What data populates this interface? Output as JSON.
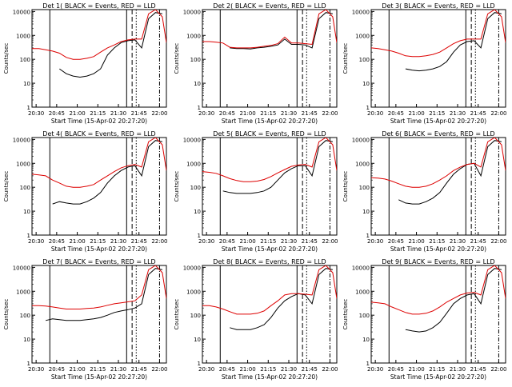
{
  "figure": {
    "x_ticks": [
      "20:30",
      "20:45",
      "21:00",
      "21:15",
      "21:30",
      "21:45",
      "22:00"
    ],
    "y_ticks": [
      "1",
      "10",
      "100",
      "1000",
      "10000"
    ],
    "ylabel": "Counts/sec",
    "xlabel": "Start Time (15-Apr-02 20:27:20)"
  },
  "chart_data": [
    {
      "type": "line",
      "title": "Det 1( BLACK = Events, RED = LLD",
      "xlabel": "Start Time (15-Apr-02 20:27:20)",
      "ylabel": "Counts/sec",
      "xlim_minutes": [
        0,
        98
      ],
      "ylim": [
        1,
        12000
      ],
      "yscale": "log",
      "x_minutes": [
        0,
        5,
        10,
        15,
        20,
        25,
        30,
        35,
        40,
        45,
        50,
        55,
        60,
        65,
        70,
        75,
        80,
        85,
        90,
        95,
        98
      ],
      "series": [
        {
          "name": "Events",
          "color": "#000000",
          "values": [
            null,
            null,
            null,
            null,
            40,
            25,
            20,
            18,
            20,
            25,
            40,
            150,
            300,
            500,
            600,
            650,
            300,
            5000,
            9000,
            8000,
            null
          ]
        },
        {
          "name": "LLD",
          "color": "#dd0000",
          "values": [
            280,
            280,
            250,
            220,
            180,
            120,
            100,
            100,
            110,
            130,
            200,
            300,
            400,
            550,
            650,
            700,
            700,
            8000,
            12000,
            6000,
            500
          ]
        }
      ],
      "vlines_minutes": [
        {
          "x": 13,
          "style": "solid"
        },
        {
          "x": 69,
          "style": "solid"
        },
        {
          "x": 73,
          "style": "dashed"
        },
        {
          "x": 76,
          "style": "dotted"
        },
        {
          "x": 93,
          "style": "dashdot"
        }
      ]
    },
    {
      "type": "line",
      "title": "Det 2( BLACK = Events, RED = LLD",
      "xlabel": "Start Time (15-Apr-02 20:27:20)",
      "ylabel": "Counts/sec",
      "xlim_minutes": [
        0,
        98
      ],
      "ylim": [
        1,
        12000
      ],
      "yscale": "log",
      "x_minutes": [
        0,
        5,
        10,
        15,
        20,
        25,
        30,
        35,
        40,
        45,
        50,
        55,
        60,
        65,
        70,
        75,
        80,
        85,
        90,
        95,
        98
      ],
      "series": [
        {
          "name": "Events",
          "color": "#000000",
          "values": [
            null,
            null,
            null,
            null,
            300,
            280,
            280,
            270,
            300,
            320,
            350,
            400,
            700,
            420,
            420,
            400,
            300,
            5000,
            9000,
            8000,
            null
          ]
        },
        {
          "name": "LLD",
          "color": "#dd0000",
          "values": [
            550,
            550,
            520,
            480,
            320,
            300,
            300,
            300,
            320,
            350,
            380,
            450,
            850,
            480,
            480,
            450,
            420,
            8000,
            12000,
            6000,
            500
          ]
        }
      ],
      "vlines_minutes": [
        {
          "x": 13,
          "style": "solid"
        },
        {
          "x": 69,
          "style": "solid"
        },
        {
          "x": 73,
          "style": "dashed"
        },
        {
          "x": 76,
          "style": "dotted"
        },
        {
          "x": 93,
          "style": "dashdot"
        }
      ]
    },
    {
      "type": "line",
      "title": "Det 3( BLACK = Events, RED = LLD",
      "xlabel": "Start Time (15-Apr-02 20:27:20)",
      "ylabel": "Counts/sec",
      "xlim_minutes": [
        0,
        98
      ],
      "ylim": [
        1,
        12000
      ],
      "yscale": "log",
      "x_minutes": [
        0,
        5,
        10,
        15,
        20,
        25,
        30,
        35,
        40,
        45,
        50,
        55,
        60,
        65,
        70,
        75,
        80,
        85,
        90,
        95,
        98
      ],
      "series": [
        {
          "name": "Events",
          "color": "#000000",
          "values": [
            null,
            null,
            null,
            null,
            null,
            40,
            35,
            33,
            35,
            40,
            50,
            80,
            200,
            400,
            550,
            600,
            300,
            5000,
            9000,
            8000,
            null
          ]
        },
        {
          "name": "LLD",
          "color": "#dd0000",
          "values": [
            300,
            280,
            250,
            220,
            180,
            140,
            130,
            130,
            140,
            160,
            200,
            300,
            450,
            600,
            700,
            700,
            700,
            8000,
            12000,
            6000,
            500
          ]
        }
      ],
      "vlines_minutes": [
        {
          "x": 13,
          "style": "solid"
        },
        {
          "x": 69,
          "style": "solid"
        },
        {
          "x": 73,
          "style": "dashed"
        },
        {
          "x": 76,
          "style": "dotted"
        },
        {
          "x": 93,
          "style": "dashdot"
        }
      ]
    },
    {
      "type": "line",
      "title": "Det 4( BLACK = Events, RED = LLD",
      "xlabel": "Start Time (15-Apr-02 20:27:20)",
      "ylabel": "Counts/sec",
      "xlim_minutes": [
        0,
        98
      ],
      "ylim": [
        1,
        12000
      ],
      "yscale": "log",
      "x_minutes": [
        0,
        5,
        10,
        15,
        20,
        25,
        30,
        35,
        40,
        45,
        50,
        55,
        60,
        65,
        70,
        75,
        80,
        85,
        90,
        95,
        98
      ],
      "series": [
        {
          "name": "Events",
          "color": "#000000",
          "values": [
            null,
            null,
            null,
            20,
            25,
            22,
            20,
            20,
            25,
            35,
            60,
            150,
            300,
            500,
            700,
            800,
            300,
            5000,
            9000,
            8000,
            null
          ]
        },
        {
          "name": "LLD",
          "color": "#dd0000",
          "values": [
            350,
            330,
            300,
            200,
            150,
            110,
            100,
            100,
            110,
            130,
            200,
            300,
            450,
            650,
            800,
            900,
            700,
            8000,
            12000,
            6000,
            500
          ]
        }
      ],
      "vlines_minutes": [
        {
          "x": 13,
          "style": "solid"
        },
        {
          "x": 69,
          "style": "solid"
        },
        {
          "x": 73,
          "style": "dashed"
        },
        {
          "x": 76,
          "style": "dotted"
        },
        {
          "x": 93,
          "style": "dashdot"
        }
      ]
    },
    {
      "type": "line",
      "title": "Det 5( BLACK = Events, RED = LLD",
      "xlabel": "Start Time (15-Apr-02 20:27:20)",
      "ylabel": "Counts/sec",
      "xlim_minutes": [
        0,
        98
      ],
      "ylim": [
        1,
        12000
      ],
      "yscale": "log",
      "x_minutes": [
        0,
        5,
        10,
        15,
        20,
        25,
        30,
        35,
        40,
        45,
        50,
        55,
        60,
        65,
        70,
        75,
        80,
        85,
        90,
        95,
        98
      ],
      "series": [
        {
          "name": "Events",
          "color": "#000000",
          "values": [
            null,
            null,
            null,
            70,
            60,
            55,
            55,
            55,
            60,
            70,
            100,
            200,
            400,
            600,
            800,
            800,
            300,
            5000,
            9000,
            8000,
            null
          ]
        },
        {
          "name": "LLD",
          "color": "#dd0000",
          "values": [
            450,
            420,
            380,
            300,
            230,
            190,
            170,
            170,
            180,
            210,
            280,
            400,
            550,
            750,
            850,
            900,
            700,
            8000,
            12000,
            6000,
            500
          ]
        }
      ],
      "vlines_minutes": [
        {
          "x": 13,
          "style": "solid"
        },
        {
          "x": 69,
          "style": "solid"
        },
        {
          "x": 73,
          "style": "dashed"
        },
        {
          "x": 76,
          "style": "dotted"
        },
        {
          "x": 93,
          "style": "dashdot"
        }
      ]
    },
    {
      "type": "line",
      "title": "Det 6( BLACK = Events, RED = LLD",
      "xlabel": "Start Time (15-Apr-02 20:27:20)",
      "ylabel": "Counts/sec",
      "xlim_minutes": [
        0,
        98
      ],
      "ylim": [
        1,
        12000
      ],
      "yscale": "log",
      "x_minutes": [
        0,
        5,
        10,
        15,
        20,
        25,
        30,
        35,
        40,
        45,
        50,
        55,
        60,
        65,
        70,
        75,
        80,
        85,
        90,
        95,
        98
      ],
      "series": [
        {
          "name": "Events",
          "color": "#000000",
          "values": [
            null,
            null,
            null,
            null,
            30,
            22,
            20,
            20,
            25,
            35,
            60,
            150,
            350,
            600,
            900,
            1000,
            300,
            5000,
            9000,
            8000,
            null
          ]
        },
        {
          "name": "LLD",
          "color": "#dd0000",
          "values": [
            250,
            240,
            220,
            180,
            140,
            110,
            100,
            100,
            110,
            140,
            200,
            300,
            500,
            700,
            900,
            1000,
            700,
            8000,
            12000,
            6000,
            500
          ]
        }
      ],
      "vlines_minutes": [
        {
          "x": 13,
          "style": "solid"
        },
        {
          "x": 69,
          "style": "solid"
        },
        {
          "x": 73,
          "style": "dashed"
        },
        {
          "x": 76,
          "style": "dotted"
        },
        {
          "x": 93,
          "style": "dashdot"
        }
      ]
    },
    {
      "type": "line",
      "title": "Det 7( BLACK = Events, RED = LLD",
      "xlabel": "Start Time (15-Apr-02 20:27:20)",
      "ylabel": "Counts/sec",
      "xlim_minutes": [
        0,
        98
      ],
      "ylim": [
        1,
        12000
      ],
      "yscale": "log",
      "x_minutes": [
        0,
        5,
        10,
        15,
        20,
        25,
        30,
        35,
        40,
        45,
        50,
        55,
        60,
        65,
        70,
        75,
        80,
        85,
        90,
        95,
        98
      ],
      "series": [
        {
          "name": "Events",
          "color": "#000000",
          "values": [
            null,
            null,
            60,
            70,
            65,
            60,
            60,
            60,
            65,
            70,
            80,
            100,
            130,
            150,
            170,
            200,
            300,
            5000,
            9000,
            8000,
            null
          ]
        },
        {
          "name": "LLD",
          "color": "#dd0000",
          "values": [
            250,
            250,
            240,
            220,
            200,
            180,
            180,
            180,
            190,
            200,
            220,
            260,
            300,
            330,
            360,
            400,
            700,
            8000,
            12000,
            6000,
            500
          ]
        }
      ],
      "vlines_minutes": [
        {
          "x": 13,
          "style": "solid"
        },
        {
          "x": 69,
          "style": "solid"
        },
        {
          "x": 73,
          "style": "dashed"
        },
        {
          "x": 76,
          "style": "dotted"
        },
        {
          "x": 93,
          "style": "dashdot"
        }
      ]
    },
    {
      "type": "line",
      "title": "Det 8( BLACK = Events, RED = LLD",
      "xlabel": "Start Time (15-Apr-02 20:27:20)",
      "ylabel": "Counts/sec",
      "xlim_minutes": [
        0,
        98
      ],
      "ylim": [
        1,
        12000
      ],
      "yscale": "log",
      "x_minutes": [
        0,
        5,
        10,
        15,
        20,
        25,
        30,
        35,
        40,
        45,
        50,
        55,
        60,
        65,
        70,
        75,
        80,
        85,
        90,
        95,
        98
      ],
      "series": [
        {
          "name": "Events",
          "color": "#000000",
          "values": [
            null,
            null,
            null,
            null,
            30,
            25,
            25,
            25,
            30,
            40,
            80,
            200,
            400,
            600,
            800,
            700,
            300,
            5000,
            9000,
            8000,
            null
          ]
        },
        {
          "name": "LLD",
          "color": "#dd0000",
          "values": [
            250,
            250,
            220,
            180,
            140,
            110,
            110,
            110,
            120,
            150,
            250,
            400,
            700,
            800,
            800,
            750,
            700,
            8000,
            12000,
            6000,
            500
          ]
        }
      ],
      "vlines_minutes": [
        {
          "x": 13,
          "style": "solid"
        },
        {
          "x": 69,
          "style": "solid"
        },
        {
          "x": 73,
          "style": "dashed"
        },
        {
          "x": 76,
          "style": "dotted"
        },
        {
          "x": 93,
          "style": "dashdot"
        }
      ]
    },
    {
      "type": "line",
      "title": "Det 9( BLACK = Events, RED = LLD",
      "xlabel": "Start Time (15-Apr-02 20:27:20)",
      "ylabel": "Counts/sec",
      "xlim_minutes": [
        0,
        98
      ],
      "ylim": [
        1,
        12000
      ],
      "yscale": "log",
      "x_minutes": [
        0,
        5,
        10,
        15,
        20,
        25,
        30,
        35,
        40,
        45,
        50,
        55,
        60,
        65,
        70,
        75,
        80,
        85,
        90,
        95,
        98
      ],
      "series": [
        {
          "name": "Events",
          "color": "#000000",
          "values": [
            null,
            null,
            null,
            null,
            null,
            25,
            22,
            20,
            22,
            30,
            50,
            120,
            300,
            500,
            700,
            800,
            300,
            5000,
            9000,
            8000,
            null
          ]
        },
        {
          "name": "LLD",
          "color": "#dd0000",
          "values": [
            350,
            330,
            300,
            220,
            170,
            130,
            110,
            110,
            120,
            150,
            220,
            350,
            500,
            700,
            850,
            900,
            700,
            8000,
            12000,
            6000,
            500
          ]
        }
      ],
      "vlines_minutes": [
        {
          "x": 13,
          "style": "solid"
        },
        {
          "x": 69,
          "style": "solid"
        },
        {
          "x": 73,
          "style": "dashed"
        },
        {
          "x": 76,
          "style": "dotted"
        },
        {
          "x": 93,
          "style": "dashdot"
        }
      ]
    }
  ]
}
